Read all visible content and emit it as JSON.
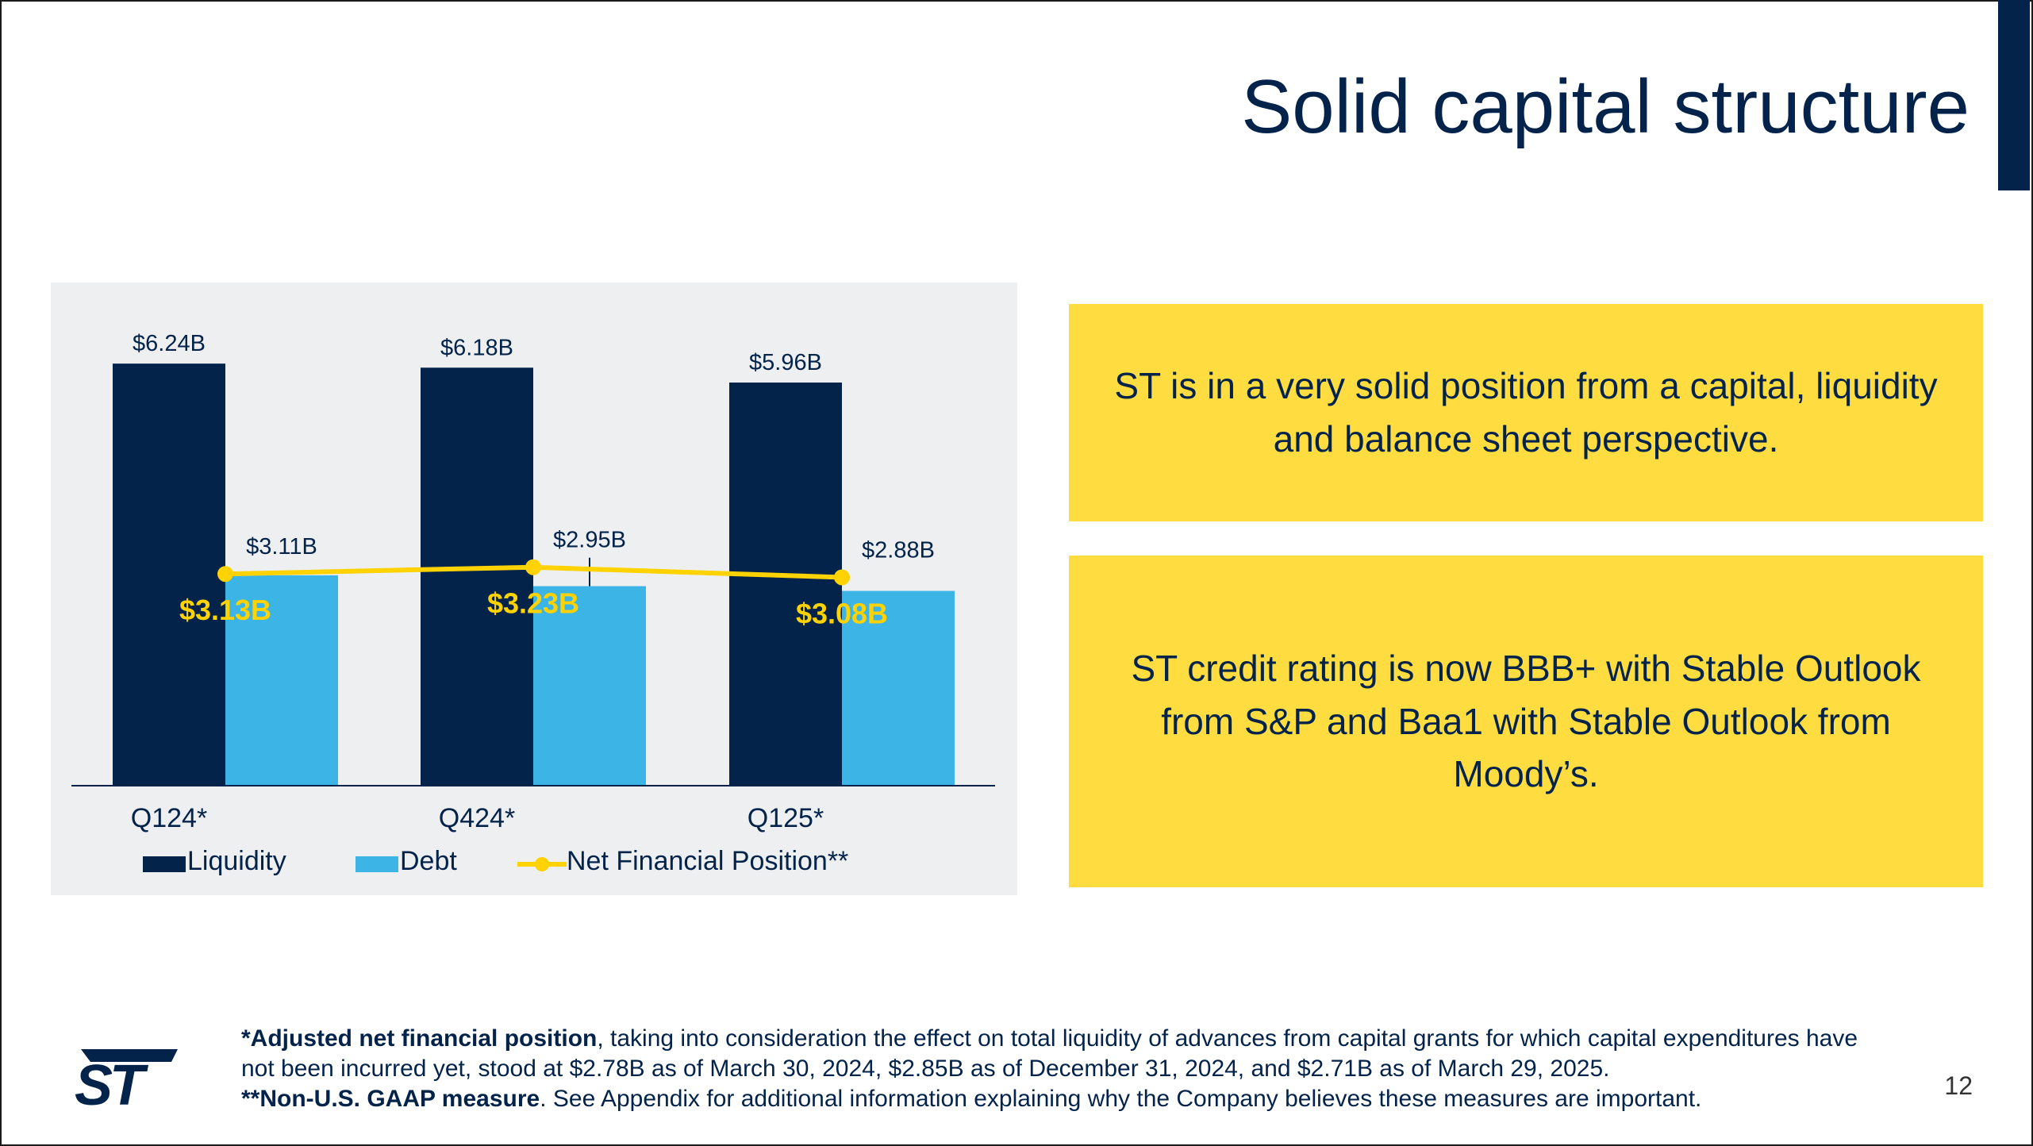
{
  "slide": {
    "title": "Solid capital structure",
    "page_number": "12",
    "colors": {
      "navy": "#03234b",
      "debt": "#3cb4e6",
      "net": "#ffd200",
      "callout_bg": "#ffdd40"
    }
  },
  "callouts": [
    "ST is in a very solid position from a capital, liquidity and balance sheet perspective.",
    "ST credit rating is now BBB+ with Stable Outlook from S&P and Baa1 with Stable Outlook from Moody’s."
  ],
  "footnote": {
    "line1_bold": "*Adjusted net financial position",
    "line1_rest": ", taking into consideration the effect on total liquidity of advances from capital grants for which capital expenditures have not been incurred yet, stood at $2.78B as of March 30, 2024, $2.85B as of December 31, 2024, and $2.71B as of March 29, 2025.",
    "line2_bold": "**Non-U.S. GAAP measure",
    "line2_rest": ". See Appendix for additional information explaining why the Company believes these measures are important."
  },
  "logo": {
    "text": "ST"
  },
  "chart_data": {
    "type": "bar",
    "categories": [
      "Q124*",
      "Q424*",
      "Q125*"
    ],
    "series": [
      {
        "name": "Liquidity",
        "kind": "bar",
        "color": "#03234b",
        "values": [
          6.24,
          6.18,
          5.96
        ],
        "labels": [
          "$6.24B",
          "$6.18B",
          "$5.96B"
        ]
      },
      {
        "name": "Debt",
        "kind": "bar",
        "color": "#3cb4e6",
        "values": [
          3.11,
          2.95,
          2.88
        ],
        "labels": [
          "$3.11B",
          "$2.95B",
          "$2.88B"
        ]
      },
      {
        "name": "Net Financial Position**",
        "kind": "line",
        "color": "#ffd200",
        "values": [
          3.13,
          3.23,
          3.08
        ],
        "labels": [
          "$3.13B",
          "$3.23B",
          "$3.08B"
        ]
      }
    ],
    "ylim": [
      0,
      6.5
    ],
    "legend": "bottom",
    "title": "",
    "xlabel": "",
    "ylabel": ""
  }
}
